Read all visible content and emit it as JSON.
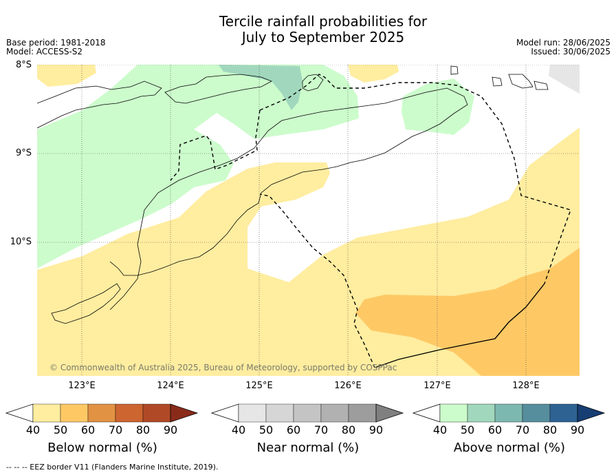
{
  "title": {
    "line1": "Tercile rainfall probabilities for",
    "line2": "July to September 2025"
  },
  "meta": {
    "base_period": "Base period: 1981-2018",
    "model": "Model: ACCESS-S2",
    "model_run": "Model run: 28/06/2025",
    "issued": "Issued: 30/06/2025"
  },
  "map": {
    "lat_labels": [
      "8°S",
      "9°S",
      "10°S"
    ],
    "lon_labels": [
      "123°E",
      "124°E",
      "125°E",
      "126°E",
      "127°E",
      "128°E"
    ],
    "copyright": "© Commonwealth of Australia 2025, Bureau of Meteorology, supported by COSPPac"
  },
  "colorbars": [
    {
      "title": "Below normal (%)",
      "ticks": [
        "40",
        "50",
        "60",
        "70",
        "80",
        "90"
      ],
      "colors": [
        "#ffeda0",
        "#fec965",
        "#e29243",
        "#cd6531",
        "#b04a26",
        "#8a2b1a"
      ]
    },
    {
      "title": "Near normal (%)",
      "ticks": [
        "40",
        "50",
        "60",
        "70",
        "80",
        "90"
      ],
      "colors": [
        "#e6e6e6",
        "#d6d6d6",
        "#c4c4c4",
        "#b1b1b1",
        "#9d9d9d",
        "#808080"
      ]
    },
    {
      "title": "Above normal (%)",
      "ticks": [
        "40",
        "50",
        "60",
        "70",
        "80",
        "90"
      ],
      "colors": [
        "#ccfccc",
        "#a1d8bd",
        "#7db8b0",
        "#578e9e",
        "#2d6293",
        "#173e73"
      ]
    }
  ],
  "footer": {
    "eez_note": "--  --  -- EEZ border V11 (Flanders Marine Institute, 2019)."
  }
}
